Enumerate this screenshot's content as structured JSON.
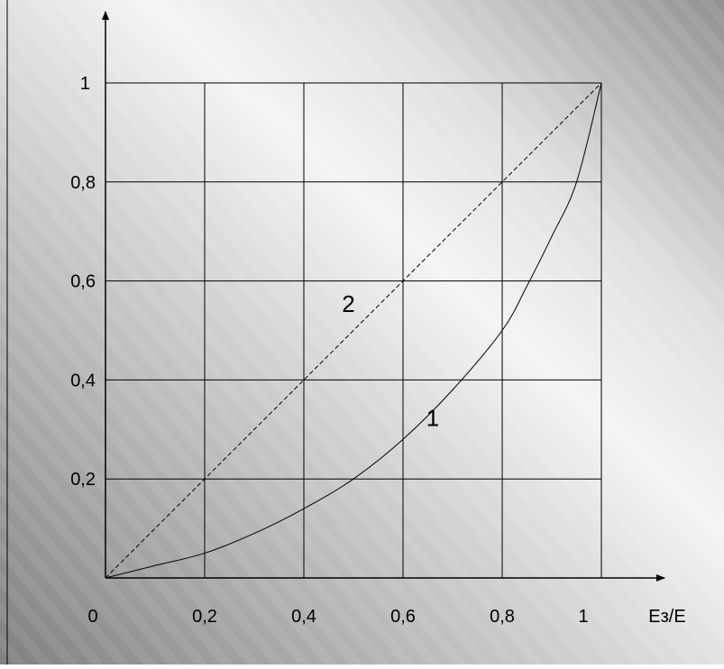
{
  "chart_data": {
    "type": "line",
    "x_tick_labels": [
      "0",
      "0,2",
      "0,4",
      "0,6",
      "0,8",
      "1"
    ],
    "y_tick_labels": [
      "0,2",
      "0,4",
      "0,6",
      "0,8",
      "1"
    ],
    "x_ticks": [
      0,
      0.2,
      0.4,
      0.6,
      0.8,
      1
    ],
    "y_ticks": [
      0.2,
      0.4,
      0.6,
      0.8,
      1
    ],
    "xlabel": "Eз/E",
    "ylabel": "",
    "xlim": [
      0,
      1
    ],
    "ylim": [
      0,
      1
    ],
    "grid": true,
    "series": [
      {
        "name": "1",
        "line_style": "solid",
        "x": [
          0,
          0.1,
          0.2,
          0.3,
          0.4,
          0.5,
          0.6,
          0.7,
          0.8,
          0.85,
          0.9,
          0.95,
          1.0
        ],
        "y": [
          0,
          0.025,
          0.05,
          0.09,
          0.14,
          0.2,
          0.28,
          0.38,
          0.5,
          0.59,
          0.69,
          0.8,
          1.0
        ]
      },
      {
        "name": "2",
        "line_style": "dashed",
        "x": [
          0,
          0.2,
          0.4,
          0.6,
          0.8,
          1.0
        ],
        "y": [
          0,
          0.2,
          0.4,
          0.6,
          0.8,
          1.0
        ]
      }
    ],
    "annotations": [
      {
        "text": "1",
        "x": 0.66,
        "y": 0.3
      },
      {
        "text": "2",
        "x": 0.49,
        "y": 0.53
      }
    ],
    "colors": {
      "axis": "#000000",
      "grid": "#000000",
      "series": "#000000",
      "background_light": "#f4f4f4",
      "background_dark": "#808080"
    }
  }
}
